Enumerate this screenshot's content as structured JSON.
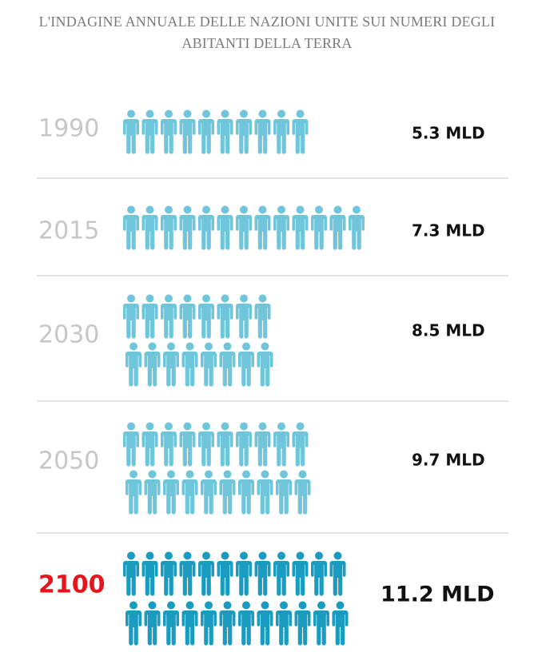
{
  "chart_data": {
    "type": "pictogram",
    "title": "L'INDAGINE ANNUALE DELLE NAZIONI UNITE SUI NUMERI DEGLI ABITANTI DELLA TERRA",
    "categories": [
      "1990",
      "2015",
      "2030",
      "2050",
      "2100"
    ],
    "labels": [
      "5.3 MLD",
      "7.3 MLD",
      "8.5 MLD",
      "9.7 MLD",
      "11.2 MLD"
    ],
    "icon_rows": [
      [
        10
      ],
      [
        13
      ],
      [
        8,
        8
      ],
      [
        10,
        10
      ],
      [
        12,
        12
      ]
    ],
    "icon_colors": [
      "#6fc6da",
      "#6fc6da",
      "#6fc6da",
      "#6fc6da",
      "#1a9cc0"
    ],
    "category_colors": [
      "#c6c6c6",
      "#c6c6c6",
      "#c6c6c6",
      "#c6c6c6",
      "#e8141b"
    ]
  }
}
